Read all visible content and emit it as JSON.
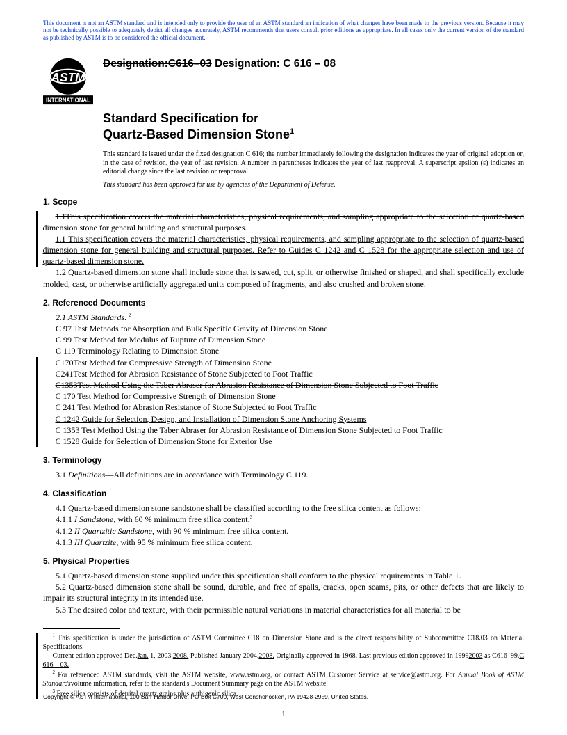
{
  "colors": {
    "link_blue": "#0033cc",
    "text": "#000000",
    "bg": "#ffffff"
  },
  "fonts": {
    "body": "Times New Roman",
    "heading": "Arial",
    "body_size_pt": 12,
    "heading_size_pt": 12,
    "title_size_pt": 18,
    "small_pt": 10,
    "disclaimer_pt": 9
  },
  "disclaimer": "This document is not an ASTM standard and is intended only to provide the user of an ASTM standard an indication of what changes have been made to the previous version. Because it may not be technically possible to adequately depict all changes accurately, ASTM recommends that users consult prior editions as appropriate. In all cases only the current version of the standard as published by ASTM is to be considered the official document.",
  "logo": {
    "top_label": "INTERNATIONAL"
  },
  "designation": {
    "old": "Designation:C616–03",
    "new_prefix": " Designation: C 616 – 08"
  },
  "title_line1": "Standard Specification for",
  "title_line2": "Quartz-Based Dimension Stone",
  "title_sup": "1",
  "issue_note": "This standard is issued under the fixed designation C 616; the number immediately following the designation indicates the year of original adoption or, in the case of revision, the year of last revision. A number in parentheses indicates the year of last reapproval. A superscript epsilon (ε) indicates an editorial change since the last revision or reapproval.",
  "dod_note": "This standard has been approved for use by agencies of the Department of Defense.",
  "s1": {
    "head": "1. Scope",
    "p1_old": "1.1This specification covers the material characteristics, physical requirements, and sampling appropriate to the selection of quartz-based dimension stone for general building and structural purposes.",
    "p1_new": "1.1 This specification covers the material characteristics, physical requirements, and sampling appropriate to the selection of quartz-based dimension stone for general building and structural purposes. Refer to Guides C 1242 and C 1528 for the appropriate selection and use of quartz-based dimension stone.",
    "p2": "1.2 Quartz-based dimension stone shall include stone that is sawed, cut, split, or otherwise finished or shaped, and shall specifically exclude molded, cast, or otherwise artificially aggregated units composed of fragments, and also crushed and broken stone."
  },
  "s2": {
    "head": "2. Referenced Documents",
    "sub": "2.1 ASTM Standards:",
    "sub_sup": " 2",
    "keep": [
      "C 97  Test Methods for Absorption and Bulk Specific Gravity of Dimension Stone",
      "C 99  Test Method for Modulus of Rupture of Dimension Stone",
      "C 119  Terminology Relating to Dimension Stone"
    ],
    "strike": [
      "C170Test Method for Compressive Strength of Dimension Stone",
      "C241Test Method for Abrasion Resistance of Stone Subjected to Foot Traffic",
      "C1353Test Method Using the Taber Abraser for Abrasion Resistance of Dimension Stone Subjected to Foot Traffic"
    ],
    "add": [
      "C 170  Test Method for Compressive Strength of Dimension Stone",
      "C 241  Test Method for Abrasion Resistance of Stone Subjected to Foot Traffic",
      "C 1242  Guide for Selection, Design, and Installation of Dimension Stone Anchoring Systems",
      "C 1353  Test Method Using the Taber Abraser for Abrasion Resistance of Dimension Stone Subjected to Foot Traffic",
      "C 1528  Guide for Selection of Dimension Stone for Exterior Use"
    ]
  },
  "s3": {
    "head": "3. Terminology",
    "p1_pre": "3.1 ",
    "p1_ital": "Definitions",
    "p1_post": "—All definitions are in accordance with Terminology C 119."
  },
  "s4": {
    "head": "4. Classification",
    "p1": "4.1 Quartz-based dimension stone sandstone shall be classified according to the free silica content as follows:",
    "p2_pre": "4.1.1 ",
    "p2_ital": "I Sandstone",
    "p2_post": ", with 60 % minimum free silica content.",
    "p2_sup": "3",
    "p3_pre": "4.1.2 ",
    "p3_ital": "II Quartzitic Sandstone",
    "p3_post": ", with 90 % minimum free silica content.",
    "p4_pre": "4.1.3 ",
    "p4_ital": "III Quartzite",
    "p4_post": ", with 95 % minimum free silica content."
  },
  "s5": {
    "head": "5. Physical Properties",
    "p1": "5.1 Quartz-based dimension stone supplied under this specification shall conform to the physical requirements in Table 1.",
    "p2": "5.2 Quartz-based dimension stone shall be sound, durable, and free of spalls, cracks, open seams, pits, or other defects that are likely to impair its structural integrity in its intended use.",
    "p3": "5.3 The desired color and texture, with their permissible natural variations in material characteristics for all material to be"
  },
  "footnotes": {
    "f1_a": " This specification is under the jurisdiction of ASTM Committee C18 on Dimension Stone and is the direct responsibility of Subcommittee C18.03 on Material Specifications.",
    "f1_b_pre": "Current edition approved ",
    "f1_b_s1": "Dec.",
    "f1_b_u1": "Jan.",
    "f1_b_mid1": " 1, ",
    "f1_b_s2": "2003.",
    "f1_b_u2": "2008.",
    "f1_b_mid2": " Published January ",
    "f1_b_s3": "2004.",
    "f1_b_u3": "2008.",
    "f1_b_mid3": " Originally approved in 1968. Last previous edition approved in ",
    "f1_b_s4": "1999",
    "f1_b_u4": "2003",
    "f1_b_mid4": " as ",
    "f1_b_s5": "C616–99.",
    "f1_b_u5": "C 616 – 03.",
    "f2_a": " For referenced ASTM standards, visit the ASTM website, www.astm.org, or contact ASTM Customer Service at service@astm.org. For ",
    "f2_ital": "Annual Book of ASTM Standards",
    "f2_b": "volume information, refer to the standard's Document Summary page on the ASTM website.",
    "f3": " Free silica consists of detrital quartz grains plus authigenic silica."
  },
  "copyright": "Copyright © ASTM International, 100 Barr Harbor Drive, PO Box C700, West Conshohocken, PA 19428-2959, United States.",
  "page_number": "1"
}
